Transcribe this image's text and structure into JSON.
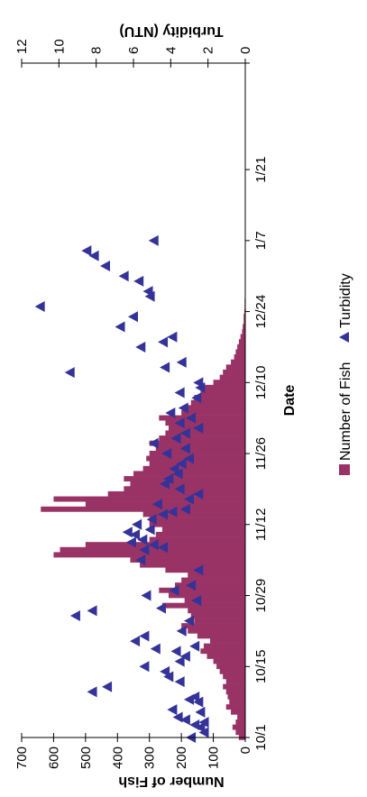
{
  "chart_data": {
    "type": "bar+scatter",
    "xlabel": "Date",
    "x_ticks": [
      "10/1",
      "10/15",
      "10/29",
      "11/12",
      "11/26",
      "12/10",
      "12/24",
      "1/7",
      "1/21"
    ],
    "x_range_days": [
      0,
      133
    ],
    "y_left": {
      "label": "Number of Fish",
      "ticks": [
        0,
        100,
        200,
        300,
        400,
        500,
        600,
        700
      ],
      "range": [
        0,
        700
      ]
    },
    "y_right": {
      "label": "Turbidity (NTU)",
      "ticks": [
        0,
        2,
        4,
        6,
        8,
        10,
        12
      ],
      "range": [
        0,
        12
      ]
    },
    "grid": false,
    "legend_position": "bottom",
    "legend": [
      {
        "label": "Number of Fish",
        "color": "#993366",
        "marker": "square"
      },
      {
        "label": "Turbidity",
        "color": "#333399",
        "marker": "triangle"
      }
    ],
    "series": [
      {
        "name": "Number of Fish",
        "kind": "bar",
        "color": "#993366",
        "note": "daily values, index 0 = 10/1",
        "values": [
          20,
          30,
          40,
          30,
          25,
          45,
          60,
          50,
          55,
          60,
          70,
          60,
          70,
          80,
          90,
          100,
          120,
          140,
          130,
          110,
          150,
          180,
          200,
          160,
          170,
          180,
          260,
          190,
          240,
          270,
          220,
          200,
          180,
          250,
          330,
          360,
          600,
          580,
          500,
          300,
          280,
          260,
          300,
          300,
          320,
          640,
          500,
          600,
          430,
          380,
          360,
          380,
          350,
          320,
          300,
          310,
          300,
          280,
          300,
          270,
          250,
          240,
          250,
          270,
          200,
          190,
          170,
          160,
          140,
          130,
          100,
          80,
          70,
          60,
          45,
          35,
          30,
          25,
          20,
          15,
          10,
          8,
          5,
          5,
          3,
          2,
          2,
          1,
          1
        ]
      },
      {
        "name": "Turbidity",
        "kind": "scatter",
        "marker": "triangle",
        "color": "#333399",
        "points": [
          [
            0,
            2.9
          ],
          [
            1,
            2.2
          ],
          [
            2,
            2.4
          ],
          [
            2.5,
            2.7
          ],
          [
            3,
            2.2
          ],
          [
            3.5,
            3.2
          ],
          [
            4,
            3.6
          ],
          [
            5,
            2.4
          ],
          [
            5.5,
            3.9
          ],
          [
            7,
            2.5
          ],
          [
            7.5,
            3.0
          ],
          [
            8,
            2.7
          ],
          [
            9,
            8.2
          ],
          [
            10,
            7.4
          ],
          [
            11,
            3.5
          ],
          [
            12,
            4.1
          ],
          [
            13,
            4.3
          ],
          [
            14,
            5.4
          ],
          [
            15,
            3.5
          ],
          [
            16,
            3.2
          ],
          [
            17,
            3.7
          ],
          [
            17.5,
            4.8
          ],
          [
            18,
            2.7
          ],
          [
            19,
            5.9
          ],
          [
            20,
            5.4
          ],
          [
            21,
            3.4
          ],
          [
            23,
            3.0
          ],
          [
            24,
            9.1
          ],
          [
            25,
            8.2
          ],
          [
            25.5,
            4.5
          ],
          [
            27,
            2.6
          ],
          [
            28,
            5.3
          ],
          [
            29,
            3.8
          ],
          [
            30,
            2.9
          ],
          [
            33,
            2.5
          ],
          [
            35,
            5.6
          ],
          [
            37,
            5.4
          ],
          [
            37.5,
            4.4
          ],
          [
            38,
            4.9
          ],
          [
            38.5,
            6.1
          ],
          [
            39,
            5.5
          ],
          [
            40,
            5.9
          ],
          [
            40.5,
            6.3
          ],
          [
            41,
            5.1
          ],
          [
            42,
            5.8
          ],
          [
            43,
            5.0
          ],
          [
            44,
            4.4
          ],
          [
            44.5,
            3.9
          ],
          [
            45,
            3.2
          ],
          [
            46,
            4.7
          ],
          [
            47,
            3.0
          ],
          [
            48,
            2.5
          ],
          [
            49,
            3.5
          ],
          [
            50,
            4.3
          ],
          [
            51,
            4.1
          ],
          [
            52,
            3.6
          ],
          [
            53,
            3.8
          ],
          [
            54,
            3.4
          ],
          [
            55,
            3.0
          ],
          [
            56,
            4.2
          ],
          [
            57,
            3.2
          ],
          [
            58,
            4.9
          ],
          [
            59,
            3.7
          ],
          [
            60,
            3.2
          ],
          [
            61,
            2.5
          ],
          [
            62,
            3.5
          ],
          [
            63,
            2.9
          ],
          [
            64,
            4.0
          ],
          [
            65,
            3.3
          ],
          [
            67,
            2.6
          ],
          [
            68,
            3.5
          ],
          [
            69,
            2.4
          ],
          [
            70,
            2.5
          ],
          [
            72,
            9.4
          ],
          [
            73,
            4.3
          ],
          [
            74,
            3.4
          ],
          [
            77,
            5.6
          ],
          [
            78,
            4.4
          ],
          [
            79,
            3.9
          ],
          [
            81,
            6.7
          ],
          [
            83,
            6.0
          ],
          [
            85,
            11.0
          ],
          [
            87,
            5.1
          ],
          [
            88,
            5.2
          ],
          [
            90,
            5.7
          ],
          [
            91,
            6.5
          ],
          [
            93,
            7.5
          ],
          [
            95,
            8.1
          ],
          [
            96,
            8.5
          ],
          [
            98,
            4.9
          ]
        ]
      }
    ]
  }
}
